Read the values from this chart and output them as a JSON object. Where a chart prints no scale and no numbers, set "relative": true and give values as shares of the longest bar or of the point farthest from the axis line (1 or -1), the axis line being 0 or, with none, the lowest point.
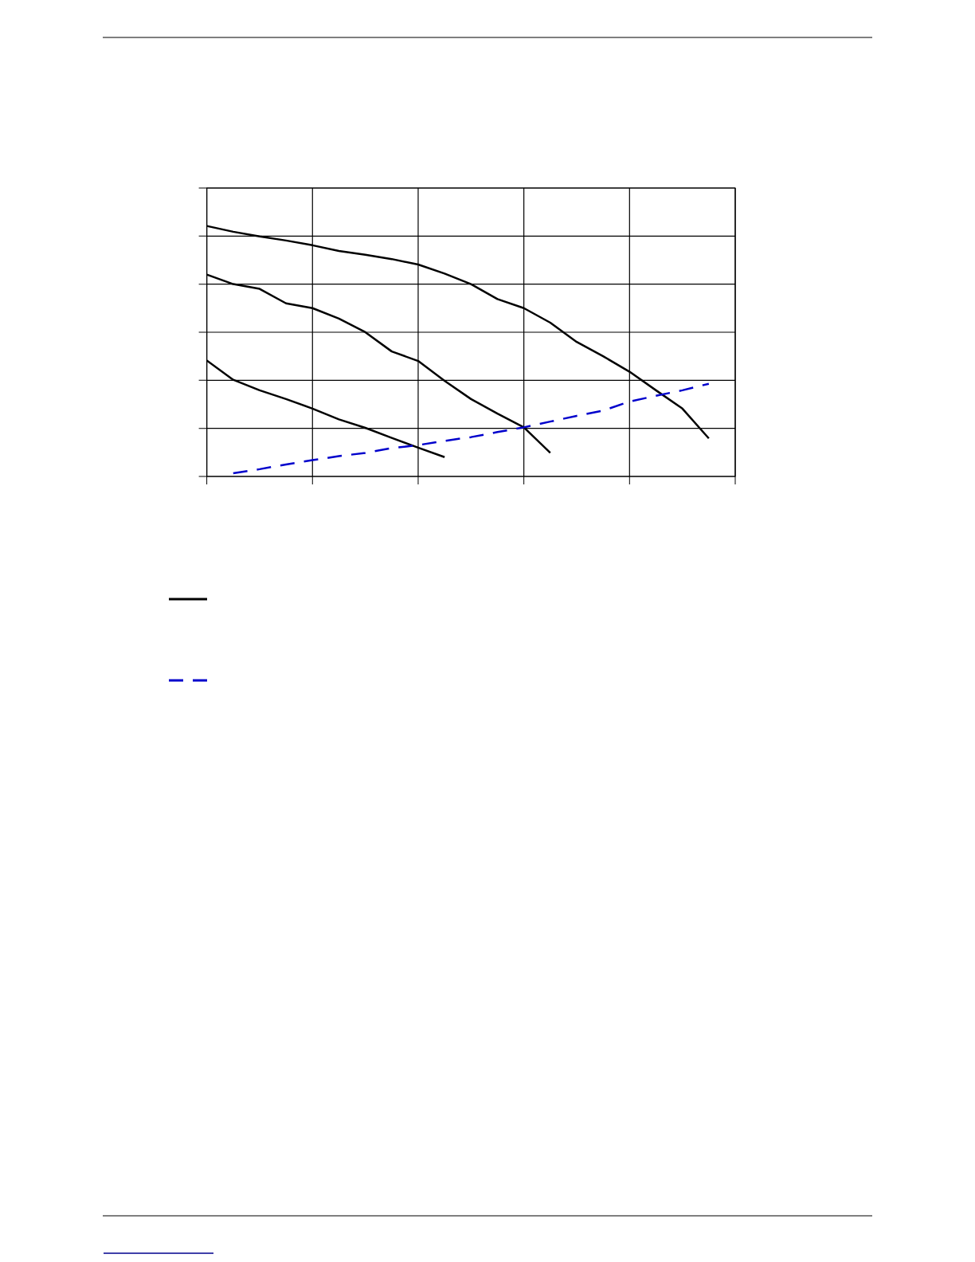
{
  "chart_data": {
    "type": "line",
    "relative": true,
    "categories": [
      null,
      null,
      null,
      null,
      null,
      null,
      null,
      null,
      null,
      null,
      null,
      null,
      null,
      null,
      null,
      null,
      null,
      null,
      null,
      null
    ],
    "series": [
      {
        "color": "#000000",
        "values": [
          1,
          0.977,
          0.958,
          0.942,
          0.923,
          0.9,
          0.885,
          0.868,
          0.846,
          0.81,
          0.768,
          0.708,
          0.672,
          0.614,
          0.537,
          0.48,
          0.418,
          0.344,
          0.271,
          0.152
        ]
      },
      {
        "color": "#000000",
        "values": [
          0.806,
          0.768,
          0.749,
          0.691,
          0.672,
          0.63,
          0.576,
          0.499,
          0.461,
          0.382,
          0.309,
          0.251,
          0.196,
          0.094,
          null,
          null,
          null,
          null,
          null,
          null
        ]
      },
      {
        "color": "#000000",
        "values": [
          0.463,
          0.386,
          0.344,
          0.309,
          0.271,
          0.228,
          0.194,
          0.154,
          0.115,
          0.077,
          null,
          null,
          null,
          null,
          null,
          null,
          null,
          null,
          null,
          null
        ]
      },
      {
        "color": "#0000cc",
        "line_style": "dashed",
        "values": [
          null,
          0.013,
          0.029,
          0.048,
          0.065,
          0.081,
          0.094,
          0.113,
          0.125,
          0.142,
          0.157,
          0.177,
          0.196,
          0.219,
          0.242,
          0.263,
          0.299,
          0.322,
          0.344,
          0.37
        ]
      }
    ],
    "grid": true,
    "marker": "none",
    "line_style": "solid",
    "tick_labels": false
  }
}
